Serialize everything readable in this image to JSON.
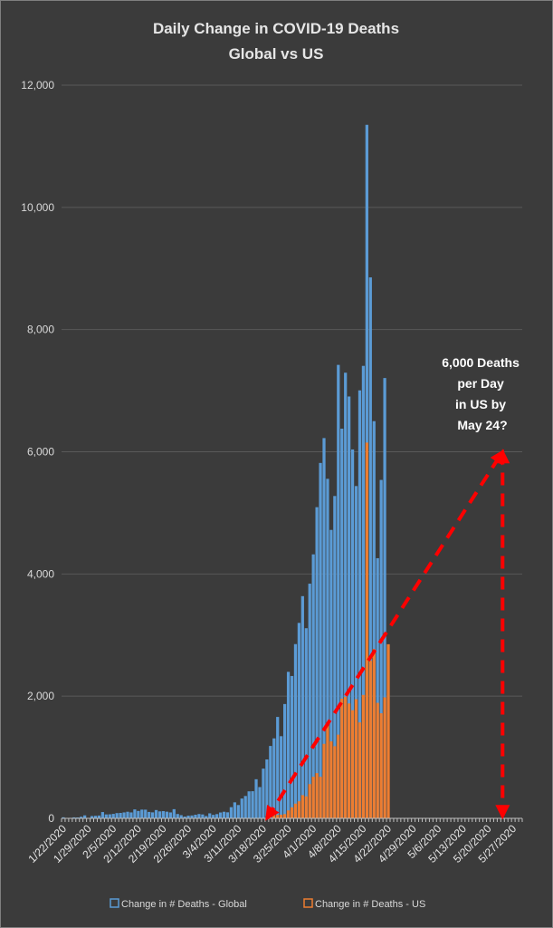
{
  "chart_data": {
    "type": "bar",
    "title": "Daily Change in COVID-19 Deaths",
    "subtitle": "Global vs US",
    "ylim": [
      0,
      12000
    ],
    "yticks": [
      "0",
      "2,000",
      "4,000",
      "6,000",
      "8,000",
      "10,000",
      "12,000"
    ],
    "ytick_values": [
      0,
      2000,
      4000,
      6000,
      8000,
      10000,
      12000
    ],
    "grid": true,
    "legend_position": "bottom",
    "x_start_date": "1/22/2020",
    "x_end_date": "5/29/2020",
    "xtick_labels": [
      "1/22/2020",
      "1/29/2020",
      "2/5/2020",
      "2/12/2020",
      "2/19/2020",
      "2/26/2020",
      "3/4/2020",
      "3/11/2020",
      "3/18/2020",
      "3/25/2020",
      "4/1/2020",
      "4/8/2020",
      "4/15/2020",
      "4/22/2020",
      "4/29/2020",
      "5/6/2020",
      "5/13/2020",
      "5/20/2020",
      "5/27/2020"
    ],
    "series": [
      {
        "name": "Change in # Deaths - Global",
        "color": "#5b9bd5",
        "values": [
          17,
          0,
          8,
          16,
          14,
          26,
          49,
          2,
          38,
          42,
          46,
          103,
          64,
          66,
          73,
          86,
          89,
          97,
          108,
          97,
          146,
          121,
          143,
          142,
          105,
          98,
          136,
          114,
          118,
          109,
          97,
          150,
          71,
          52,
          29,
          44,
          47,
          59,
          71,
          64,
          38,
          82,
          57,
          69,
          96,
          108,
          99,
          183,
          262,
          218,
          324,
          366,
          442,
          444,
          640,
          512,
          814,
          964,
          1185,
          1309,
          1660,
          1345,
          1871,
          2398,
          2330,
          2852,
          3199,
          3637,
          3112,
          3841,
          4321,
          5093,
          5817,
          6224,
          5557,
          4721,
          5276,
          7422,
          6378,
          7294,
          6905,
          6038,
          5439,
          7005,
          7406,
          11351,
          8854,
          6501,
          4258,
          5539,
          7207
        ],
        "note": "Global series ends at 4/21/2020"
      },
      {
        "name": "Change in # Deaths - US",
        "color": "#ed7d31",
        "values": [
          0,
          0,
          0,
          0,
          0,
          0,
          0,
          0,
          0,
          0,
          0,
          0,
          0,
          0,
          0,
          0,
          0,
          0,
          0,
          0,
          0,
          0,
          0,
          0,
          0,
          0,
          0,
          0,
          0,
          0,
          0,
          0,
          0,
          0,
          0,
          0,
          0,
          0,
          0,
          0,
          0,
          0,
          0,
          0,
          0,
          0,
          0,
          0,
          0,
          0,
          0,
          0,
          0,
          0,
          0,
          0,
          0,
          0,
          0,
          48,
          58,
          60,
          70,
          130,
          180,
          240,
          280,
          380,
          360,
          560,
          680,
          740,
          680,
          1220,
          1560,
          1260,
          1180,
          1370,
          1960,
          1990,
          1880,
          1770,
          1950,
          1570,
          2020,
          6150,
          2580,
          2770,
          1890,
          1720,
          1980,
          2850
        ]
      }
    ],
    "annotation": {
      "lines": [
        "6,000 Deaths",
        "per Day",
        "in US by",
        "May 24?"
      ],
      "trend_from": {
        "date": "3/19/2020",
        "value": 0
      },
      "trend_to": {
        "date": "5/24/2020",
        "value": 6000
      },
      "color": "#ff0000"
    }
  }
}
